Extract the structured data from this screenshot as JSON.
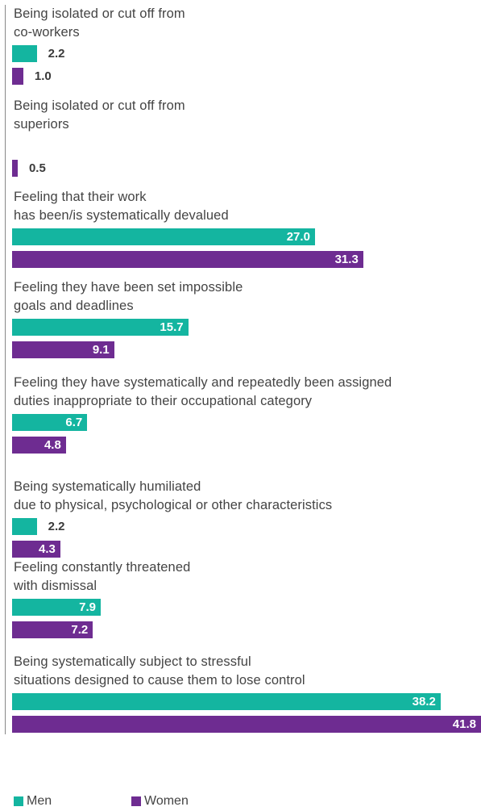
{
  "chart_data": {
    "type": "bar",
    "orientation": "horizontal",
    "categories": [
      "Being isolated or cut off from\nco-workers",
      "Being isolated or cut off from\nsuperiors",
      "Feeling that their work\nhas been/is systematically devalued",
      "Feeling they have been set impossible\ngoals and deadlines",
      "Feeling they have systematically and repeatedly been assigned\nduties inappropriate to their occupational category",
      "Being systematically humiliated\ndue to physical, psychological or other characteristics",
      "Feeling constantly threatened\nwith dismissal",
      "Being systematically subject to stressful\nsituations designed to cause them to lose control"
    ],
    "series": [
      {
        "name": "Men",
        "color": "#14b5a0",
        "values": [
          2.2,
          null,
          27.0,
          15.7,
          6.7,
          2.2,
          7.9,
          38.2
        ]
      },
      {
        "name": "Women",
        "color": "#6e2c91",
        "values": [
          1.0,
          0.5,
          31.3,
          9.1,
          4.8,
          4.3,
          7.2,
          41.8
        ]
      }
    ],
    "value_labels": {
      "Men": [
        "2.2",
        "",
        "27.0",
        "15.7",
        "6.7",
        "2.2",
        "7.9",
        "38.2"
      ],
      "Women": [
        "1.0",
        "0.5",
        "31.3",
        "9.1",
        "4.8",
        "4.3",
        "7.2",
        "41.8"
      ]
    },
    "xlim": [
      0,
      41.8
    ],
    "grid": false,
    "legend_position": "bottom-left"
  }
}
